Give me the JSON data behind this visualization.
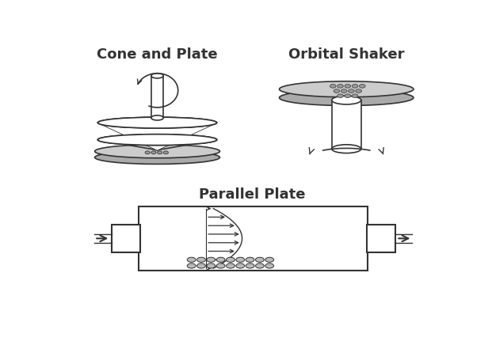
{
  "title_cone": "Cone and Plate",
  "title_orbital": "Orbital Shaker",
  "title_parallel": "Parallel Plate",
  "bg_color": "#ffffff",
  "line_color": "#333333",
  "fill_color": "#cccccc",
  "dark_fill": "#aaaaaa",
  "title_fontsize": 13,
  "title_fontweight": "bold"
}
